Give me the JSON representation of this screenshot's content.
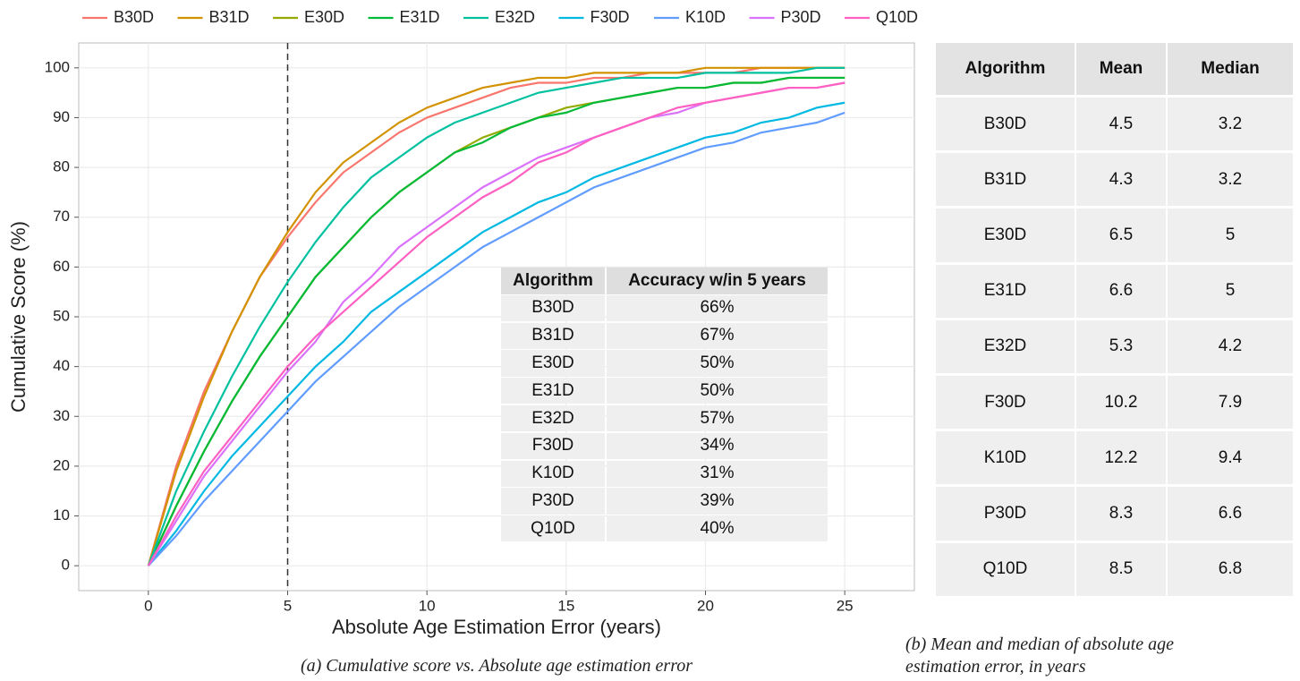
{
  "chart_data": {
    "type": "line",
    "x_label": "Absolute Age Estimation Error (years)",
    "y_label": "Cumulative Score (%)",
    "x": [
      0,
      1,
      2,
      3,
      4,
      5,
      6,
      7,
      8,
      9,
      10,
      11,
      12,
      13,
      14,
      15,
      16,
      17,
      18,
      19,
      20,
      21,
      22,
      23,
      24,
      25
    ],
    "xlim": [
      -2.5,
      27.5
    ],
    "xticks": [
      0,
      5,
      10,
      15,
      20,
      25
    ],
    "ylim": [
      -5,
      105
    ],
    "yticks": [
      0,
      10,
      20,
      30,
      40,
      50,
      60,
      70,
      80,
      90,
      100
    ],
    "grid": true,
    "legend": "top",
    "vline": 5,
    "series": [
      {
        "name": "B30D",
        "color": "#F8766D",
        "values": [
          0,
          20,
          35,
          47,
          58,
          66,
          73,
          79,
          83,
          87,
          90,
          92,
          94,
          96,
          97,
          97,
          98,
          98,
          99,
          99,
          99,
          99,
          100,
          100,
          100,
          100
        ]
      },
      {
        "name": "B31D",
        "color": "#D39200",
        "values": [
          0,
          19,
          34,
          47,
          58,
          67,
          75,
          81,
          85,
          89,
          92,
          94,
          96,
          97,
          98,
          98,
          99,
          99,
          99,
          99,
          100,
          100,
          100,
          100,
          100,
          100
        ]
      },
      {
        "name": "E30D",
        "color": "#93AA00",
        "values": [
          0,
          12,
          23,
          33,
          42,
          50,
          58,
          64,
          70,
          75,
          79,
          83,
          86,
          88,
          90,
          92,
          93,
          94,
          95,
          96,
          96,
          97,
          97,
          98,
          98,
          98
        ]
      },
      {
        "name": "E31D",
        "color": "#00BA38",
        "values": [
          0,
          12,
          23,
          33,
          42,
          50,
          58,
          64,
          70,
          75,
          79,
          83,
          85,
          88,
          90,
          91,
          93,
          94,
          95,
          96,
          96,
          97,
          97,
          98,
          98,
          98
        ]
      },
      {
        "name": "E32D",
        "color": "#00C19F",
        "values": [
          0,
          15,
          27,
          38,
          48,
          57,
          65,
          72,
          78,
          82,
          86,
          89,
          91,
          93,
          95,
          96,
          97,
          98,
          98,
          98,
          99,
          99,
          99,
          99,
          100,
          100
        ]
      },
      {
        "name": "F30D",
        "color": "#00B9E3",
        "values": [
          0,
          7,
          15,
          22,
          28,
          34,
          40,
          45,
          51,
          55,
          59,
          63,
          67,
          70,
          73,
          75,
          78,
          80,
          82,
          84,
          86,
          87,
          89,
          90,
          92,
          93
        ]
      },
      {
        "name": "K10D",
        "color": "#619CFF",
        "values": [
          0,
          6,
          13,
          19,
          25,
          31,
          37,
          42,
          47,
          52,
          56,
          60,
          64,
          67,
          70,
          73,
          76,
          78,
          80,
          82,
          84,
          85,
          87,
          88,
          89,
          91
        ]
      },
      {
        "name": "P30D",
        "color": "#DB72FB",
        "values": [
          0,
          9,
          18,
          25,
          32,
          39,
          45,
          53,
          58,
          64,
          68,
          72,
          76,
          79,
          82,
          84,
          86,
          88,
          90,
          91,
          93,
          94,
          95,
          96,
          96,
          97
        ]
      },
      {
        "name": "Q10D",
        "color": "#FF61C3",
        "values": [
          0,
          10,
          19,
          26,
          33,
          40,
          46,
          51,
          56,
          61,
          66,
          70,
          74,
          77,
          81,
          83,
          86,
          88,
          90,
          92,
          93,
          94,
          95,
          96,
          96,
          97
        ]
      }
    ],
    "inset_table": {
      "header": [
        "Algorithm",
        "Accuracy w/in 5 years"
      ],
      "rows": [
        [
          "B30D",
          "66%"
        ],
        [
          "B31D",
          "67%"
        ],
        [
          "E30D",
          "50%"
        ],
        [
          "E31D",
          "50%"
        ],
        [
          "E32D",
          "57%"
        ],
        [
          "F30D",
          "34%"
        ],
        [
          "K10D",
          "31%"
        ],
        [
          "P30D",
          "39%"
        ],
        [
          "Q10D",
          "40%"
        ]
      ]
    }
  },
  "side_table": {
    "header": [
      "Algorithm",
      "Mean",
      "Median"
    ],
    "rows": [
      [
        "B30D",
        "4.5",
        "3.2"
      ],
      [
        "B31D",
        "4.3",
        "3.2"
      ],
      [
        "E30D",
        "6.5",
        "5"
      ],
      [
        "E31D",
        "6.6",
        "5"
      ],
      [
        "E32D",
        "5.3",
        "4.2"
      ],
      [
        "F30D",
        "10.2",
        "7.9"
      ],
      [
        "K10D",
        "12.2",
        "9.4"
      ],
      [
        "P30D",
        "8.3",
        "6.6"
      ],
      [
        "Q10D",
        "8.5",
        "6.8"
      ]
    ]
  },
  "captions": {
    "a": "(a) Cumulative score vs. Absolute age estimation error",
    "b_line1": "(b) Mean and median of absolute age",
    "b_line2": "estimation error, in years"
  }
}
